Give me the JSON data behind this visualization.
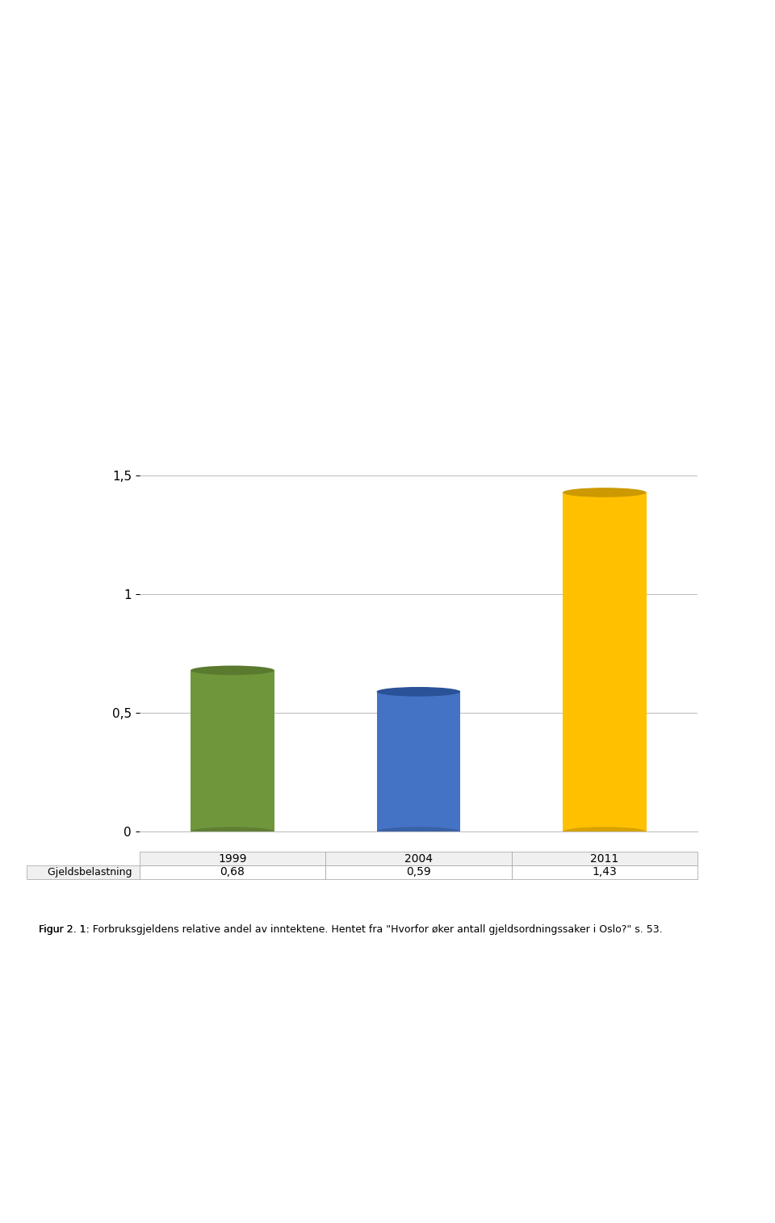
{
  "categories": [
    "1999",
    "2004",
    "2011"
  ],
  "values": [
    0.68,
    0.59,
    1.43
  ],
  "bar_colors": [
    "#70963c",
    "#4472c4",
    "#ffc000"
  ],
  "bar_colors_top": [
    "#5a7a30",
    "#2a5298",
    "#cc9900"
  ],
  "legend_label": "Gjeldsbelastning",
  "legend_color": "#4472c4",
  "yticks": [
    0,
    0.5,
    1.0,
    1.5
  ],
  "ytick_labels": [
    "0",
    "0,5",
    "1",
    "1,5"
  ],
  "ylim": [
    0,
    1.65
  ],
  "table_values": [
    "0,68",
    "0,59",
    "1,43"
  ],
  "bg_color": "#ffffff",
  "grid_color": "#c0c0c0",
  "chart_bg": "#ffffff",
  "figsize": [
    9.6,
    15.15
  ],
  "dpi": 100,
  "caption": "Figur 2. 1: Forbruksgjeldens relative andel av inntektene. Hentet fra \"Hvorfor øker antall gjeldsordningssaker i Oslo?\" s. 53.",
  "caption_italic": "Forbruksgjeldens relative andel av inntektene",
  "caption_prefix": "Figur 2. 1: ",
  "caption_suffix": ". Hentet fra \"Hvorfor øker antall gjeldsordningssaker i Oslo?\" s. 53."
}
